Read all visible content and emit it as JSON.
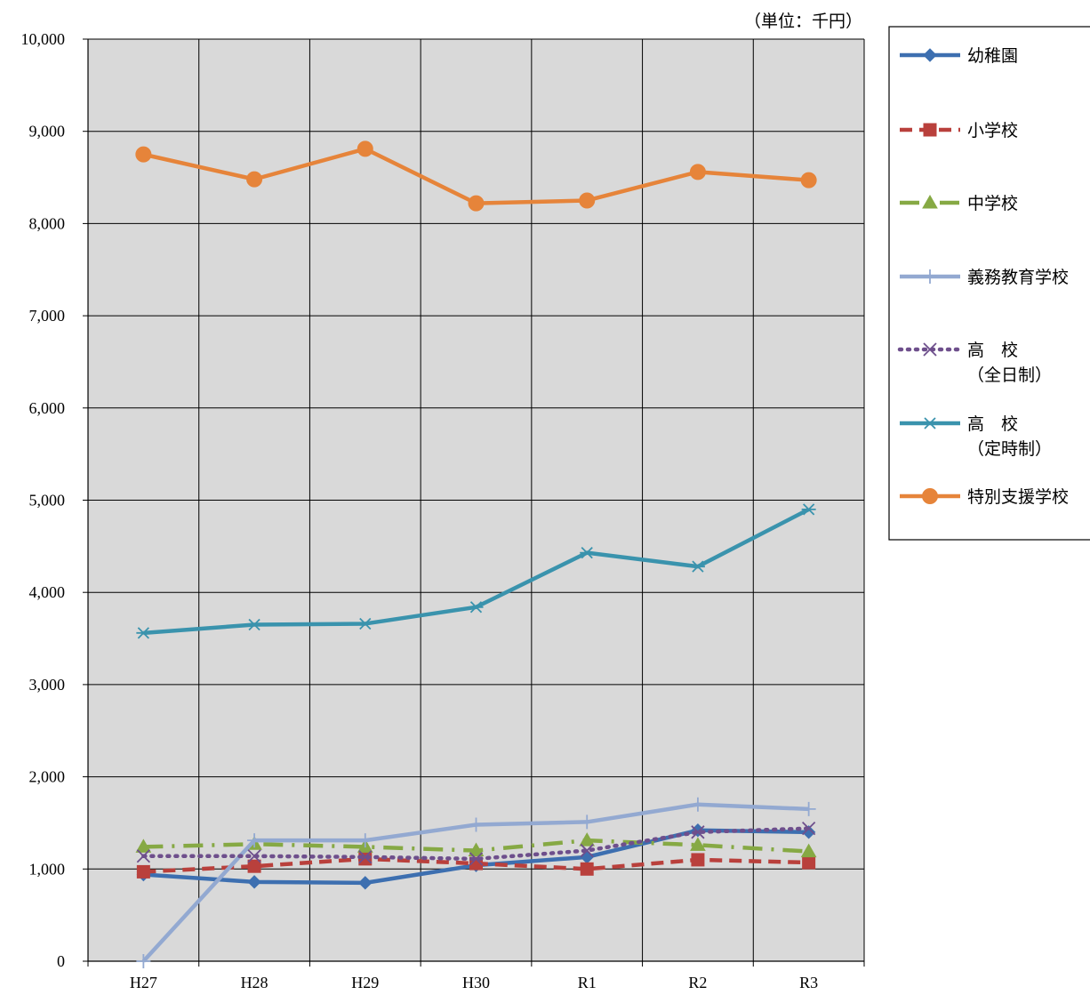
{
  "chart_data": {
    "type": "line",
    "unit_note": "（単位：千円）",
    "categories": [
      "H27",
      "H28",
      "H29",
      "H30",
      "R1",
      "R2",
      "R3"
    ],
    "y_ticks": [
      "0",
      "1,000",
      "2,000",
      "3,000",
      "4,000",
      "5,000",
      "6,000",
      "7,000",
      "8,000",
      "9,000",
      "10,000"
    ],
    "ylim": [
      0,
      10000
    ],
    "grid": true,
    "plot_background": "#d9d9d9",
    "legend_position": "right",
    "series": [
      {
        "name_lines": [
          "幼稚園"
        ],
        "color": "#3d6fb0",
        "dash": "solid",
        "marker": "diamond",
        "values": [
          940,
          860,
          850,
          1040,
          1130,
          1420,
          1400
        ]
      },
      {
        "name_lines": [
          "小学校"
        ],
        "color": "#b9403c",
        "dash": "dash",
        "marker": "square",
        "values": [
          970,
          1030,
          1110,
          1060,
          1000,
          1100,
          1070
        ]
      },
      {
        "name_lines": [
          "中学校"
        ],
        "color": "#86a944",
        "dash": "dashdot",
        "marker": "triangle",
        "values": [
          1240,
          1270,
          1240,
          1200,
          1310,
          1260,
          1190
        ]
      },
      {
        "name_lines": [
          "義務教育学校"
        ],
        "color": "#93a9d1",
        "dash": "solid",
        "marker": "plus",
        "values": [
          0,
          1310,
          1310,
          1480,
          1510,
          1700,
          1650
        ]
      },
      {
        "name_lines": [
          "高　校",
          "（全日制）"
        ],
        "color": "#6e4f8c",
        "dash": "dot",
        "marker": "x",
        "values": [
          1140,
          1140,
          1130,
          1110,
          1200,
          1400,
          1440
        ]
      },
      {
        "name_lines": [
          "高　校",
          "（定時制）"
        ],
        "color": "#3a93ad",
        "dash": "solid",
        "marker": "star",
        "values": [
          3560,
          3650,
          3660,
          3840,
          4430,
          4280,
          4900
        ]
      },
      {
        "name_lines": [
          "特別支援学校"
        ],
        "color": "#e6843a",
        "dash": "solid",
        "marker": "circle",
        "values": [
          8750,
          8480,
          8810,
          8220,
          8250,
          8560,
          8470
        ]
      }
    ]
  }
}
